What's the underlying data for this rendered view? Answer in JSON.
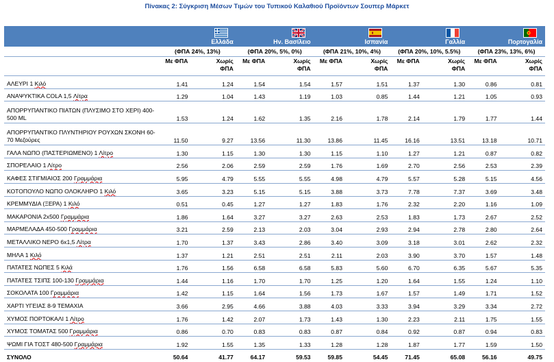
{
  "title": "Πίνακας 2: Σύγκριση Μέσων Τιμών του Τυπικού Καλαθιού Προϊόντων Σουπερ Μάρκετ",
  "countries": [
    {
      "name": "Ελλάδα",
      "vat": "(ΦΠΑ 24%, 13%)",
      "flag": "greece-flag-icon"
    },
    {
      "name": "Ην. Βασίλειο",
      "vat": "(ΦΠΑ 20%, 5%, 0%)",
      "flag": "uk-flag-icon"
    },
    {
      "name": "Ισπανία",
      "vat": "(ΦΠΑ 21%, 10%, 4%)",
      "flag": "spain-flag-icon"
    },
    {
      "name": "Γαλλία",
      "vat": "(ΦΠΑ 20%, 10%, 5.5%)",
      "flag": "france-flag-icon"
    },
    {
      "name": "Πορτογαλία",
      "vat": "(ΦΠΑ 23%, 13%, 6%)",
      "flag": "portugal-flag-icon"
    }
  ],
  "sub_headers": {
    "with_vat": "Με ΦΠΑ",
    "without_vat_1": "Χωρίς",
    "without_vat_2": "ΦΠΑ"
  },
  "rows": [
    {
      "name": "ΑΛΕΥΡΙ 1 ",
      "unit": "Κιλό",
      "values": [
        "1.41",
        "1.24",
        "1.54",
        "1.54",
        "1.57",
        "1.51",
        "1.37",
        "1.30",
        "0.86",
        "0.81"
      ]
    },
    {
      "name": "ΑΝΑΨΥΚΤΙΚΑ COLA 1,5 ",
      "unit": "Λίτρα",
      "values": [
        "1.29",
        "1.04",
        "1.43",
        "1.19",
        "1.03",
        "0.85",
        "1.44",
        "1.21",
        "1.05",
        "0.93"
      ]
    },
    {
      "name": "ΑΠΟΡΡΥΠΑΝΤΙΚΟ ΠΙΑΤΩΝ (ΠΛΥΣΙΜΟ ΣΤΟ ΧΕΡΙ) 400-500 ML",
      "unit": "",
      "tall": true,
      "values": [
        "1.53",
        "1.24",
        "1.62",
        "1.35",
        "2.16",
        "1.78",
        "2.14",
        "1.79",
        "1.77",
        "1.44"
      ]
    },
    {
      "name": "ΑΠΟΡΡΥΠΑΝΤΙΚΟ ΠΛΥΝΤΗΡΙΟΥ ΡΟΥΧΩΝ ΣΚΟΝΗ 60-70 Μεζούρες",
      "unit": "",
      "tall": true,
      "values": [
        "11.50",
        "9.27",
        "13.56",
        "11.30",
        "13.86",
        "11.45",
        "16.16",
        "13.51",
        "13.18",
        "10.71"
      ]
    },
    {
      "name": "ΓΑΛΑ ΝΩΠΟ (ΠΑΣΤΕΡΙΩΜΕΝΟ) 1 ",
      "unit": "Λίτρο",
      "values": [
        "1.30",
        "1.15",
        "1.30",
        "1.30",
        "1.15",
        "1.10",
        "1.27",
        "1.21",
        "0.87",
        "0.82"
      ]
    },
    {
      "name": "ΣΠΟΡΕΛΑΙΟ 1 ",
      "unit": "Λίτρο",
      "values": [
        "2.56",
        "2.06",
        "2.59",
        "2.59",
        "1.76",
        "1.69",
        "2.70",
        "2.56",
        "2.53",
        "2.39"
      ]
    },
    {
      "name": "ΚΑΦΕΣ ΣΤΙΓΜΙΑΙΟΣ 200 ",
      "unit": "Γραμμάρια",
      "values": [
        "5.95",
        "4.79",
        "5.55",
        "5.55",
        "4.98",
        "4.79",
        "5.57",
        "5.28",
        "5.15",
        "4.56"
      ]
    },
    {
      "name": "ΚΟΤΟΠΟΥΛΟ ΝΩΠΟ ΟΛΟΚΛΗΡΟ 1 ",
      "unit": "Κιλό",
      "values": [
        "3.65",
        "3.23",
        "5.15",
        "5.15",
        "3.88",
        "3.73",
        "7.78",
        "7.37",
        "3.69",
        "3.48"
      ]
    },
    {
      "name": "ΚΡΕΜΜΥΔΙΑ (ΞΕΡΑ) 1 ",
      "unit": "Κιλό",
      "values": [
        "0.51",
        "0.45",
        "1.27",
        "1.27",
        "1.83",
        "1.76",
        "2.32",
        "2.20",
        "1.16",
        "1.09"
      ]
    },
    {
      "name": "ΜΑΚΑΡΟΝΙΑ 2x500 ",
      "unit": "Γραμμάρια",
      "values": [
        "1.86",
        "1.64",
        "3.27",
        "3.27",
        "2.63",
        "2.53",
        "1.83",
        "1.73",
        "2.67",
        "2.52"
      ]
    },
    {
      "name": "ΜΑΡΜΕΛΑΔΑ 450-500 ",
      "unit": "Γραμμάρια",
      "values": [
        "3.21",
        "2.59",
        "2.13",
        "2.03",
        "3.04",
        "2.93",
        "2.94",
        "2.78",
        "2.80",
        "2.64"
      ]
    },
    {
      "name": "ΜΕΤΑΛΛΙΚΟ ΝΕΡΟ 6x1,5 ",
      "unit": "Λίτρα",
      "values": [
        "1.70",
        "1.37",
        "3.43",
        "2.86",
        "3.40",
        "3.09",
        "3.18",
        "3.01",
        "2.62",
        "2.32"
      ]
    },
    {
      "name": "ΜΗΛΑ 1 ",
      "unit": "Κιλό",
      "values": [
        "1.37",
        "1.21",
        "2.51",
        "2.51",
        "2.11",
        "2.03",
        "3.90",
        "3.70",
        "1.57",
        "1.48"
      ]
    },
    {
      "name": "ΠΑΤΑΤΕΣ ΝΩΠΕΣ 5 ",
      "unit": "Κιλά",
      "values": [
        "1.76",
        "1.56",
        "6.58",
        "6.58",
        "5.83",
        "5.60",
        "6.70",
        "6.35",
        "5.67",
        "5.35"
      ]
    },
    {
      "name": "ΠΑΤΑΤΕΣ ΤΣΙΠΣ 100-130 ",
      "unit": "Γραμμάρια",
      "values": [
        "1.44",
        "1.16",
        "1.70",
        "1.70",
        "1.25",
        "1.20",
        "1.64",
        "1.55",
        "1.24",
        "1.10"
      ]
    },
    {
      "name": "ΣΟΚΟΛΑΤΑ 100 ",
      "unit": "Γραμμάρια",
      "values": [
        "1.42",
        "1.15",
        "1.64",
        "1.56",
        "1.73",
        "1.67",
        "1.57",
        "1.49",
        "1.71",
        "1.52"
      ]
    },
    {
      "name": "ΧΑΡΤΙ ΥΓΕΙΑΣ 8-9 ΤΕΜΑΧΙΑ",
      "unit": "",
      "values": [
        "3.66",
        "2.95",
        "4.66",
        "3.88",
        "4.03",
        "3.33",
        "3.94",
        "3.29",
        "3.34",
        "2.72"
      ]
    },
    {
      "name": "ΧΥΜΟΣ ΠΟΡΤΟΚΑΛΙ 1 ",
      "unit": "Λίτρο",
      "values": [
        "1.76",
        "1.42",
        "2.07",
        "1.73",
        "1.43",
        "1.30",
        "2.23",
        "2.11",
        "1.75",
        "1.55"
      ]
    },
    {
      "name": "ΧΥΜΟΣ ΤΟΜΑΤΑΣ 500 ",
      "unit": "Γραμμάρια",
      "values": [
        "0.86",
        "0.70",
        "0.83",
        "0.83",
        "0.87",
        "0.84",
        "0.92",
        "0.87",
        "0.94",
        "0.83"
      ]
    },
    {
      "name": "ΨΩΜΙ ΓΙΑ ΤΟΣΤ 480-500 ",
      "unit": "Γραμμάρια",
      "values": [
        "1.92",
        "1.55",
        "1.35",
        "1.33",
        "1.28",
        "1.28",
        "1.87",
        "1.77",
        "1.59",
        "1.50"
      ]
    }
  ],
  "total": {
    "label": "ΣΥΝΟΛΟ",
    "values": [
      "50.64",
      "41.77",
      "64.17",
      "59.53",
      "59.85",
      "54.45",
      "71.45",
      "65.08",
      "56.16",
      "49.75"
    ]
  }
}
